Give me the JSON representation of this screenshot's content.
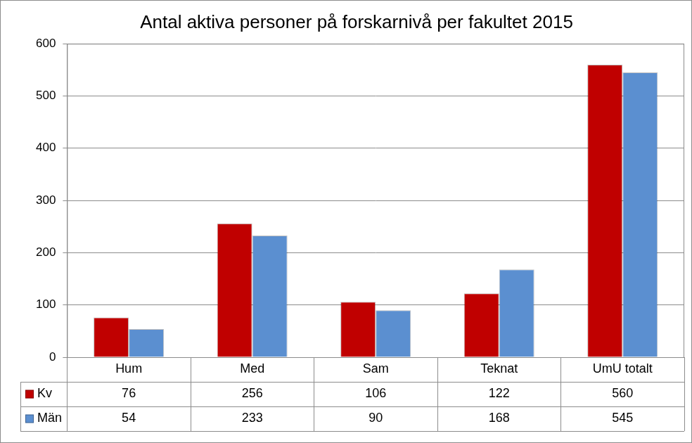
{
  "chart_data": {
    "type": "bar",
    "title": "Antal aktiva personer på forskarnivå per fakultet 2015",
    "categories": [
      "Hum",
      "Med",
      "Sam",
      "Teknat",
      "UmU totalt"
    ],
    "series": [
      {
        "name": "Kv",
        "color": "#c00000",
        "values": [
          76,
          256,
          106,
          122,
          560
        ]
      },
      {
        "name": "Män",
        "color": "#5b8fd0",
        "values": [
          54,
          233,
          90,
          168,
          545
        ]
      }
    ],
    "ylim": [
      0,
      600
    ],
    "yticks": [
      0,
      100,
      200,
      300,
      400,
      500,
      600
    ],
    "grid": true
  }
}
